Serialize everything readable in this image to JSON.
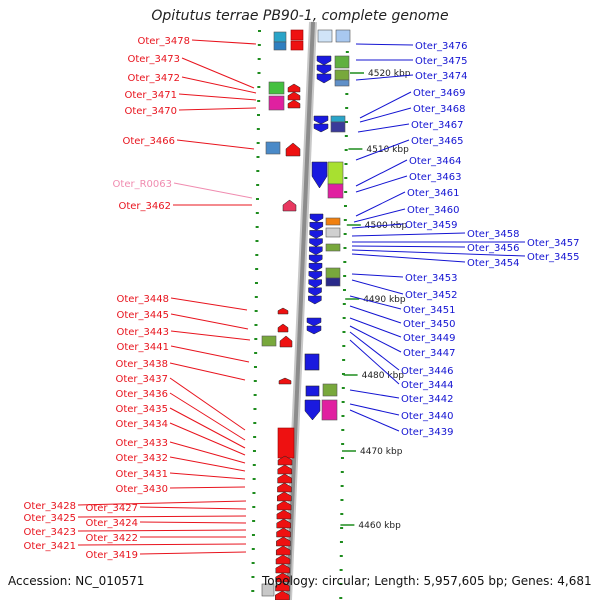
{
  "title": "Opitutus terrae PB90-1, complete genome",
  "accession": "Accession: NC_010571",
  "summary": "Topology: circular; Length: 5,957,605 bp; Genes: 4,681",
  "colors": {
    "left_labels": "#e8141e",
    "left_rna_label": "#f08cb0",
    "right_labels": "#1414d2",
    "backbone": "#8c8c8c",
    "tick": "#1e8c1e"
  },
  "scale_labels": [
    "4520 kbp",
    "4510 kbp",
    "4500 kbp",
    "4490 kbp",
    "4480 kbp",
    "4470 kbp",
    "4460 kbp"
  ],
  "left_genes": [
    "Oter_3478",
    "Oter_3473",
    "Oter_3472",
    "Oter_3471",
    "Oter_3470",
    "Oter_3466",
    "Oter_R0063",
    "Oter_3462",
    "Oter_3448",
    "Oter_3445",
    "Oter_3443",
    "Oter_3441",
    "Oter_3438",
    "Oter_3437",
    "Oter_3436",
    "Oter_3435",
    "Oter_3434",
    "Oter_3433",
    "Oter_3432",
    "Oter_3431",
    "Oter_3430",
    "Oter_3428",
    "Oter_3427",
    "Oter_3425",
    "Oter_3424",
    "Oter_3423",
    "Oter_3422",
    "Oter_3421",
    "Oter_3419"
  ],
  "right_genes": [
    "Oter_3476",
    "Oter_3475",
    "Oter_3474",
    "Oter_3469",
    "Oter_3468",
    "Oter_3467",
    "Oter_3465",
    "Oter_3464",
    "Oter_3463",
    "Oter_3461",
    "Oter_3460",
    "Oter_3459",
    "Oter_3458",
    "Oter_3457",
    "Oter_3456",
    "Oter_3455",
    "Oter_3454",
    "Oter_3453",
    "Oter_3452",
    "Oter_3451",
    "Oter_3450",
    "Oter_3449",
    "Oter_3447",
    "Oter_3446",
    "Oter_3444",
    "Oter_3442",
    "Oter_3440",
    "Oter_3439"
  ]
}
